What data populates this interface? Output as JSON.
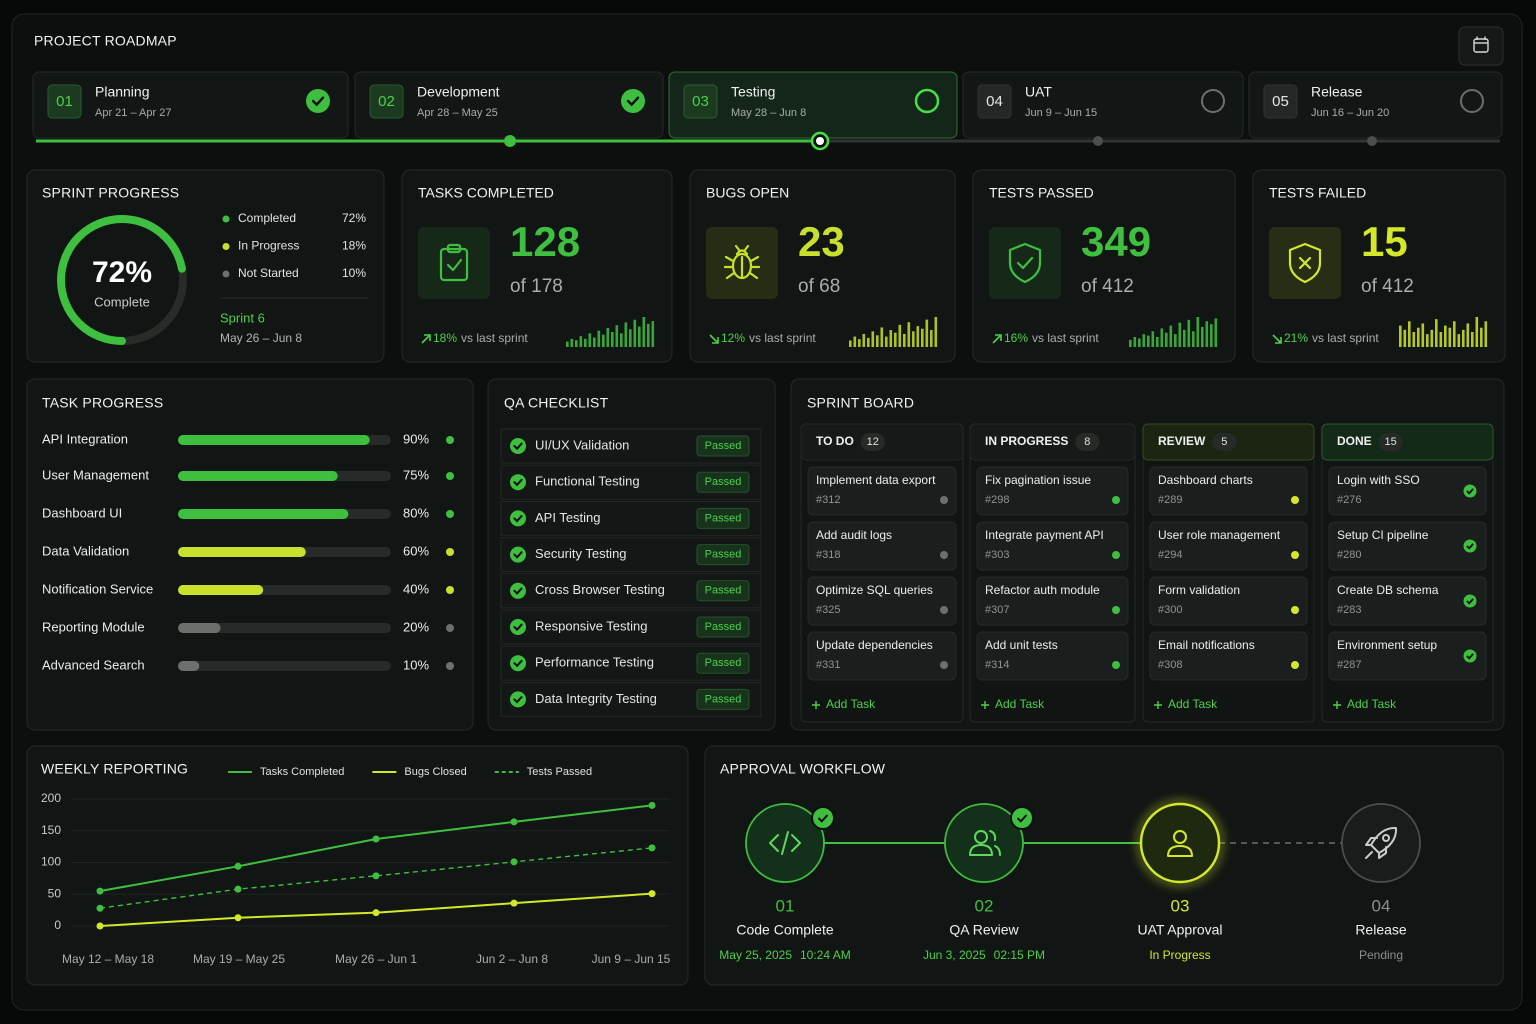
{
  "header": {
    "title": "PROJECT ROADMAP"
  },
  "roadmap": {
    "phases": [
      {
        "number": "01",
        "name": "Planning",
        "dates": "Apr 21 – Apr 27",
        "state": "complete"
      },
      {
        "number": "02",
        "name": "Development",
        "dates": "Apr 28 – May 25",
        "state": "complete"
      },
      {
        "number": "03",
        "name": "Testing",
        "dates": "May 28 – Jun 8",
        "state": "current"
      },
      {
        "number": "04",
        "name": "UAT",
        "dates": "Jun 9 – Jun 15",
        "state": "pending"
      },
      {
        "number": "05",
        "name": "Release",
        "dates": "Jun 16 – Jun 20",
        "state": "pending"
      }
    ]
  },
  "sprint_progress": {
    "title": "SPRINT PROGRESS",
    "percent": {
      "value": 72,
      "label": "72%"
    },
    "caption": "Complete",
    "legend": [
      {
        "label": "Completed",
        "value": "72%",
        "color": "#3fbf3f"
      },
      {
        "label": "In Progress",
        "value": "18%",
        "color": "#c8e02c"
      },
      {
        "label": "Not Started",
        "value": "10%",
        "color": "#6b706d"
      }
    ],
    "sprint": "Sprint 6",
    "dates": "May 26 – Jun 8"
  },
  "stats": [
    {
      "title": "TASKS COMPLETED",
      "value": "128",
      "total": "of 178",
      "trend": "18%",
      "direction": "up",
      "note": "vs last sprint",
      "color": "#3fbf3f",
      "spark": [
        4,
        6,
        5,
        8,
        6,
        10,
        7,
        12,
        9,
        14,
        11,
        16,
        10,
        18,
        13,
        20,
        15,
        22,
        17,
        19
      ]
    },
    {
      "title": "BUGS OPEN",
      "value": "23",
      "total": "of 68",
      "trend": "12%",
      "direction": "down",
      "note": "vs last sprint",
      "color": "#c8e02c",
      "spark": [
        5,
        8,
        6,
        10,
        7,
        12,
        9,
        15,
        8,
        13,
        11,
        17,
        10,
        19,
        12,
        16,
        14,
        21,
        13,
        23
      ]
    },
    {
      "title": "TESTS PASSED",
      "value": "349",
      "total": "of 412",
      "trend": "16%",
      "direction": "up",
      "note": "vs last sprint",
      "color": "#3fbf3f",
      "spark": [
        5,
        7,
        6,
        9,
        8,
        11,
        7,
        13,
        10,
        15,
        9,
        17,
        12,
        19,
        11,
        21,
        14,
        18,
        16,
        20
      ]
    },
    {
      "title": "TESTS FAILED",
      "value": "15",
      "total": "of 412",
      "trend": "21%",
      "direction": "down",
      "note": "vs last sprint",
      "color": "#d4e82a",
      "spark": [
        10,
        8,
        12,
        7,
        9,
        11,
        6,
        8,
        13,
        7,
        10,
        9,
        12,
        6,
        8,
        11,
        7,
        14,
        9,
        12
      ]
    }
  ],
  "task_progress": {
    "title": "TASK PROGRESS",
    "rows": [
      {
        "name": "API Integration",
        "value": 90,
        "label": "90%",
        "color": "#3fbf3f"
      },
      {
        "name": "User Management",
        "value": 75,
        "label": "75%",
        "color": "#3fbf3f"
      },
      {
        "name": "Dashboard UI",
        "value": 80,
        "label": "80%",
        "color": "#3fbf3f"
      },
      {
        "name": "Data Validation",
        "value": 60,
        "label": "60%",
        "color": "#c8e02c"
      },
      {
        "name": "Notification Service",
        "value": 40,
        "label": "40%",
        "color": "#c8e02c"
      },
      {
        "name": "Reporting Module",
        "value": 20,
        "label": "20%",
        "color": "#6b706d"
      },
      {
        "name": "Advanced Search",
        "value": 10,
        "label": "10%",
        "color": "#6b706d"
      }
    ]
  },
  "qa_checklist": {
    "title": "QA CHECKLIST",
    "items": [
      {
        "name": "UI/UX Validation",
        "status": "Passed"
      },
      {
        "name": "Functional Testing",
        "status": "Passed"
      },
      {
        "name": "API Testing",
        "status": "Passed"
      },
      {
        "name": "Security Testing",
        "status": "Passed"
      },
      {
        "name": "Cross Browser Testing",
        "status": "Passed"
      },
      {
        "name": "Responsive Testing",
        "status": "Passed"
      },
      {
        "name": "Performance Testing",
        "status": "Passed"
      },
      {
        "name": "Data Integrity Testing",
        "status": "Passed"
      }
    ]
  },
  "sprint_board": {
    "title": "SPRINT BOARD",
    "columns": [
      {
        "name": "TO DO",
        "count": "12",
        "marker": "#6b706d",
        "add": "Add Task",
        "cards": [
          {
            "title": "Implement data export",
            "id": "#312"
          },
          {
            "title": "Add audit logs",
            "id": "#318"
          },
          {
            "title": "Optimize SQL queries",
            "id": "#325"
          },
          {
            "title": "Update dependencies",
            "id": "#331"
          }
        ]
      },
      {
        "name": "IN PROGRESS",
        "count": "8",
        "marker": "#3fbf3f",
        "add": "Add Task",
        "cards": [
          {
            "title": "Fix pagination issue",
            "id": "#298"
          },
          {
            "title": "Integrate payment API",
            "id": "#303"
          },
          {
            "title": "Refactor auth module",
            "id": "#307"
          },
          {
            "title": "Add unit tests",
            "id": "#314"
          }
        ]
      },
      {
        "name": "REVIEW",
        "count": "5",
        "marker": "#d4e82a",
        "add": "Add Task",
        "cards": [
          {
            "title": "Dashboard charts",
            "id": "#289"
          },
          {
            "title": "User role management",
            "id": "#294"
          },
          {
            "title": "Form validation",
            "id": "#300"
          },
          {
            "title": "Email notifications",
            "id": "#308"
          }
        ]
      },
      {
        "name": "DONE",
        "count": "15",
        "marker": "check",
        "add": "Add Task",
        "cards": [
          {
            "title": "Login with SSO",
            "id": "#276"
          },
          {
            "title": "Setup CI pipeline",
            "id": "#280"
          },
          {
            "title": "Create DB schema",
            "id": "#283"
          },
          {
            "title": "Environment setup",
            "id": "#287"
          }
        ]
      }
    ]
  },
  "weekly_reporting": {
    "type": "line",
    "title": "WEEKLY REPORTING",
    "categories": [
      "May 12 – May 18",
      "May 19 – May 25",
      "May 26 – Jun 1",
      "Jun 2 – Jun 8",
      "Jun 9 – Jun 15"
    ],
    "series": [
      {
        "name": "Tasks Completed",
        "color": "#3fbf3f",
        "values": [
          55,
          94,
          137,
          164,
          190
        ]
      },
      {
        "name": "Bugs Closed",
        "color": "#d4e82a",
        "values": [
          0,
          13,
          21,
          36,
          51
        ]
      },
      {
        "name": "Tests Passed",
        "color": "#3fbf3f",
        "dashed": true,
        "values": [
          28,
          58,
          79,
          101,
          123
        ]
      }
    ],
    "ylim": [
      0,
      200
    ],
    "yticks": [
      0,
      50,
      100,
      150,
      200
    ],
    "grid": true
  },
  "approval_workflow": {
    "title": "APPROVAL WORKFLOW",
    "steps": [
      {
        "number": "01",
        "name": "Code Complete",
        "date": "May 25, 2025",
        "time": "10:24 AM",
        "state": "complete"
      },
      {
        "number": "02",
        "name": "QA Review",
        "date": "Jun 3, 2025",
        "time": "02:15 PM",
        "state": "complete"
      },
      {
        "number": "03",
        "name": "UAT Approval",
        "status": "In Progress",
        "state": "current"
      },
      {
        "number": "04",
        "name": "Release",
        "status": "Pending",
        "state": "pending"
      }
    ]
  }
}
